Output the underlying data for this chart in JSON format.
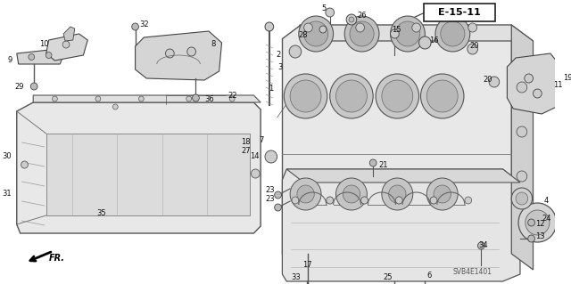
{
  "bg_color": "#ffffff",
  "diagram_code": "E-15-11",
  "model_code": "SVB4E1401",
  "figsize": [
    6.4,
    3.19
  ],
  "dpi": 100,
  "label_fontsize": 6.0,
  "label_color": "#111111",
  "line_color": "#444444",
  "part_color": "#d8d8d8",
  "part_edge": "#333333"
}
